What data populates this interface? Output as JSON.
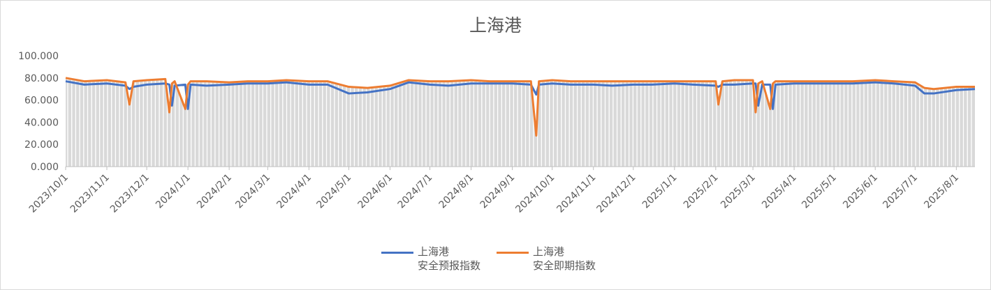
{
  "chart_data": {
    "type": "line",
    "title": "上海港",
    "xlabel": "",
    "ylabel": "",
    "ylim": [
      0,
      100
    ],
    "yticks": [
      "0.000",
      "20.000",
      "40.000",
      "60.000",
      "80.000",
      "100.000"
    ],
    "xticks": [
      "2023/10/1",
      "2023/11/1",
      "2023/12/1",
      "2024/1/1",
      "2024/2/1",
      "2024/3/1",
      "2024/4/1",
      "2024/5/1",
      "2024/6/1",
      "2024/7/1",
      "2024/8/1",
      "2024/9/1",
      "2024/10/1",
      "2024/11/1",
      "2024/12/1",
      "2025/1/1",
      "2025/2/1",
      "2025/3/1",
      "2025/4/1",
      "2025/5/1",
      "2025/6/1",
      "2025/7/1",
      "2025/8/1"
    ],
    "xlim": [
      "2023-10-01",
      "2025-08-15"
    ],
    "grid": false,
    "legend": "bottom",
    "x": [
      "2023-10-01",
      "2023-10-15",
      "2023-11-01",
      "2023-11-15",
      "2023-11-18",
      "2023-11-21",
      "2023-12-01",
      "2023-12-15",
      "2023-12-18",
      "2023-12-20",
      "2023-12-22",
      "2023-12-30",
      "2024-01-01",
      "2024-01-03",
      "2024-01-15",
      "2024-02-01",
      "2024-02-15",
      "2024-03-01",
      "2024-03-15",
      "2024-04-01",
      "2024-04-15",
      "2024-05-01",
      "2024-05-15",
      "2024-06-01",
      "2024-06-15",
      "2024-07-01",
      "2024-07-15",
      "2024-08-01",
      "2024-08-15",
      "2024-09-01",
      "2024-09-15",
      "2024-09-19",
      "2024-09-21",
      "2024-10-01",
      "2024-10-15",
      "2024-11-01",
      "2024-11-15",
      "2024-12-01",
      "2024-12-15",
      "2025-01-01",
      "2025-01-15",
      "2025-02-01",
      "2025-02-03",
      "2025-02-06",
      "2025-02-15",
      "2025-03-01",
      "2025-03-03",
      "2025-03-05",
      "2025-03-08",
      "2025-03-14",
      "2025-03-16",
      "2025-03-18",
      "2025-04-01",
      "2025-04-15",
      "2025-05-01",
      "2025-05-15",
      "2025-06-01",
      "2025-06-15",
      "2025-07-01",
      "2025-07-08",
      "2025-07-15",
      "2025-08-01",
      "2025-08-15"
    ],
    "series": [
      {
        "name": "上海港\n安全预报指数",
        "color": "#4472c4",
        "values": [
          77,
          74,
          75,
          73,
          70,
          72,
          74,
          75,
          74,
          55,
          73,
          74,
          52,
          74,
          73,
          74,
          75,
          75,
          76,
          74,
          74,
          66,
          67,
          70,
          76,
          74,
          73,
          75,
          75,
          75,
          74,
          65,
          74,
          75,
          74,
          74,
          73,
          74,
          74,
          75,
          74,
          73,
          72,
          74,
          74,
          75,
          75,
          55,
          74,
          74,
          52,
          74,
          75,
          75,
          75,
          75,
          76,
          75,
          73,
          66,
          66,
          69,
          70
        ]
      },
      {
        "name": "上海港\n安全即期指数",
        "color": "#ed7d31",
        "values": [
          80,
          77,
          78,
          76,
          56,
          77,
          78,
          79,
          49,
          75,
          77,
          52,
          74,
          77,
          77,
          76,
          77,
          77,
          78,
          77,
          77,
          72,
          71,
          73,
          78,
          77,
          77,
          78,
          77,
          77,
          77,
          28,
          77,
          78,
          77,
          77,
          77,
          77,
          77,
          77,
          77,
          77,
          56,
          77,
          78,
          78,
          49,
          75,
          77,
          52,
          75,
          77,
          77,
          77,
          77,
          77,
          78,
          77,
          76,
          71,
          70,
          72,
          72
        ]
      }
    ]
  }
}
